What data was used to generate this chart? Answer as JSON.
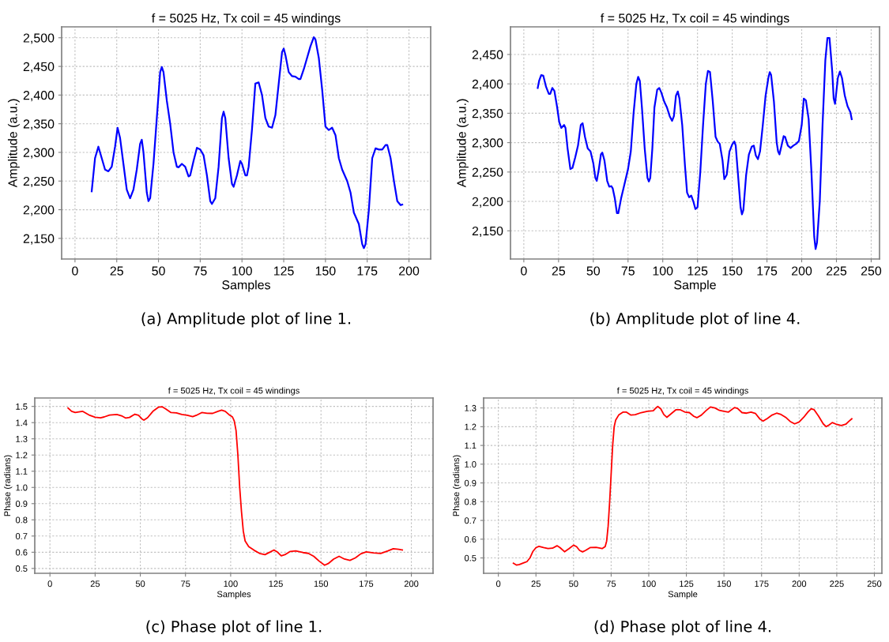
{
  "chart_data": [
    {
      "type": "line",
      "title": "f = 5025 Hz, Tx coil = 45 windings",
      "xlabel": "Samples",
      "ylabel": "Amplitude (a.u.)",
      "annotations": [
        "(a) Amplitude plot of line 1."
      ],
      "grid": true,
      "legend": false,
      "marker": "none",
      "line_style": "solid",
      "xlim": [
        -8,
        213
      ],
      "ylim": [
        2114,
        2519
      ],
      "xticks": [
        0,
        25,
        50,
        75,
        100,
        125,
        150,
        175,
        200
      ],
      "yticks": [
        {
          "value": 2150,
          "label": "2,150"
        },
        {
          "value": 2200,
          "label": "2,200"
        },
        {
          "value": 2250,
          "label": "2,250"
        },
        {
          "value": 2300,
          "label": "2,300"
        },
        {
          "value": 2350,
          "label": "2,350"
        },
        {
          "value": 2400,
          "label": "2,400"
        },
        {
          "value": 2450,
          "label": "2,450"
        },
        {
          "value": 2500,
          "label": "2,500"
        }
      ],
      "series": [
        {
          "color": "#0000ff",
          "x": [
            10,
            12,
            14,
            16,
            18,
            20,
            22,
            24,
            25.5,
            27,
            29,
            31,
            33,
            35,
            37,
            39,
            40,
            41,
            43,
            44,
            45,
            47,
            49,
            51,
            52,
            53,
            55,
            57,
            59,
            61,
            62,
            64,
            66,
            68,
            69,
            71,
            73,
            75,
            77,
            79,
            81,
            82,
            84,
            86,
            88,
            89,
            90,
            92,
            94,
            95,
            97,
            99,
            100,
            102,
            103,
            104,
            106,
            108,
            110,
            112,
            114,
            116,
            118,
            120,
            122,
            124,
            125,
            126,
            128,
            130,
            132,
            134,
            135,
            137,
            139,
            141,
            143,
            144,
            146,
            148,
            150,
            152,
            154,
            156,
            158,
            160,
            163,
            165,
            167,
            170,
            172,
            173,
            174,
            176,
            178,
            180,
            182,
            184,
            186,
            187,
            189,
            191,
            193,
            195,
            196
          ],
          "values": [
            2232,
            2290,
            2310,
            2290,
            2270,
            2267,
            2275,
            2310,
            2343,
            2325,
            2280,
            2235,
            2220,
            2235,
            2270,
            2315,
            2322,
            2300,
            2230,
            2215,
            2220,
            2280,
            2360,
            2440,
            2449,
            2440,
            2390,
            2350,
            2300,
            2275,
            2274,
            2280,
            2275,
            2258,
            2260,
            2285,
            2308,
            2305,
            2295,
            2260,
            2215,
            2210,
            2220,
            2275,
            2360,
            2371,
            2360,
            2290,
            2245,
            2240,
            2260,
            2285,
            2280,
            2260,
            2260,
            2275,
            2340,
            2420,
            2422,
            2400,
            2360,
            2345,
            2343,
            2365,
            2420,
            2475,
            2481,
            2470,
            2440,
            2433,
            2432,
            2428,
            2428,
            2445,
            2465,
            2485,
            2501,
            2497,
            2465,
            2410,
            2345,
            2339,
            2343,
            2330,
            2290,
            2270,
            2250,
            2230,
            2195,
            2175,
            2140,
            2133,
            2140,
            2200,
            2290,
            2307,
            2305,
            2305,
            2313,
            2313,
            2290,
            2250,
            2215,
            2208,
            2209
          ]
        }
      ]
    },
    {
      "type": "line",
      "title": "f = 5025 Hz, Tx coil = 45 windings",
      "xlabel": "Sample",
      "ylabel": "Amplitude (a.u.)",
      "annotations": [
        "(b) Amplitude plot of line 4."
      ],
      "grid": true,
      "legend": false,
      "marker": "none",
      "line_style": "solid",
      "xlim": [
        -9.6,
        256
      ],
      "ylim": [
        2102,
        2497
      ],
      "xticks": [
        0,
        25,
        50,
        75,
        100,
        125,
        150,
        175,
        200,
        225,
        250
      ],
      "yticks": [
        {
          "value": 2150,
          "label": "2,150"
        },
        {
          "value": 2200,
          "label": "2,200"
        },
        {
          "value": 2250,
          "label": "2,250"
        },
        {
          "value": 2300,
          "label": "2,300"
        },
        {
          "value": 2350,
          "label": "2,350"
        },
        {
          "value": 2400,
          "label": "2,400"
        },
        {
          "value": 2450,
          "label": "2,450"
        }
      ],
      "series": [
        {
          "color": "#0000ff",
          "x": [
            10,
            11,
            12.5,
            14,
            16,
            18,
            19,
            20.5,
            22,
            24,
            25.5,
            27,
            29,
            30,
            31.5,
            33.5,
            35,
            37,
            39,
            41,
            42.3,
            44,
            46,
            48,
            50,
            51.5,
            52.5,
            54,
            55.5,
            56.5,
            58,
            60,
            61.5,
            63,
            64,
            65.5,
            67,
            68,
            70,
            72,
            75,
            77,
            79,
            81,
            82.3,
            83.5,
            85,
            87,
            89,
            90,
            91,
            92.5,
            94,
            96,
            97.5,
            99,
            101,
            103,
            105,
            106.7,
            108,
            109.5,
            110.8,
            112,
            114,
            116,
            117.5,
            119,
            120.5,
            122,
            123.5,
            125,
            127,
            129,
            131,
            132.5,
            134,
            136,
            138,
            139.5,
            141,
            143,
            144.3,
            146,
            148,
            150,
            151.5,
            152.5,
            154,
            156,
            157,
            158,
            160,
            162,
            164,
            165.5,
            167,
            168.5,
            170,
            172,
            174,
            176,
            177,
            178,
            180,
            182,
            183,
            184,
            185,
            187,
            188,
            190,
            192,
            194,
            196,
            198,
            200,
            201.5,
            203,
            205,
            207,
            209,
            210,
            211,
            213,
            215,
            217,
            218.5,
            220,
            222,
            223,
            224,
            226,
            227.5,
            229,
            231,
            233,
            235,
            236
          ],
          "values": [
            2393,
            2405,
            2415,
            2414,
            2395,
            2383,
            2383,
            2393,
            2388,
            2360,
            2335,
            2325,
            2330,
            2325,
            2290,
            2255,
            2257,
            2275,
            2295,
            2330,
            2333,
            2310,
            2290,
            2285,
            2265,
            2240,
            2235,
            2255,
            2280,
            2283,
            2270,
            2235,
            2225,
            2226,
            2222,
            2205,
            2180,
            2180,
            2205,
            2225,
            2255,
            2285,
            2350,
            2400,
            2412,
            2405,
            2360,
            2290,
            2240,
            2234,
            2240,
            2290,
            2360,
            2390,
            2393,
            2385,
            2370,
            2360,
            2345,
            2337,
            2345,
            2380,
            2387,
            2375,
            2330,
            2260,
            2215,
            2207,
            2210,
            2200,
            2187,
            2190,
            2250,
            2330,
            2400,
            2422,
            2420,
            2370,
            2310,
            2302,
            2298,
            2270,
            2238,
            2245,
            2285,
            2297,
            2302,
            2295,
            2250,
            2190,
            2178,
            2185,
            2245,
            2280,
            2293,
            2295,
            2278,
            2272,
            2285,
            2330,
            2380,
            2410,
            2420,
            2415,
            2370,
            2300,
            2285,
            2280,
            2290,
            2311,
            2310,
            2295,
            2291,
            2295,
            2298,
            2303,
            2330,
            2375,
            2372,
            2340,
            2250,
            2140,
            2119,
            2130,
            2200,
            2330,
            2440,
            2478,
            2478,
            2420,
            2375,
            2366,
            2410,
            2421,
            2410,
            2380,
            2362,
            2352,
            2340
          ]
        }
      ]
    },
    {
      "type": "line",
      "title": "f = 5025 Hz, Tx coil = 45 windings",
      "xlabel": "Samples",
      "ylabel": "Phase (radians)",
      "annotations": [
        "(c) Phase plot of line 1."
      ],
      "grid": true,
      "legend": false,
      "marker": "none",
      "line_style": "solid",
      "xlim": [
        -8.4,
        212
      ],
      "ylim": [
        0.47,
        1.552
      ],
      "xticks": [
        0,
        25,
        50,
        75,
        100,
        125,
        150,
        175,
        200
      ],
      "yticks": [
        {
          "value": 0.5,
          "label": "0.5"
        },
        {
          "value": 0.6,
          "label": "0.6"
        },
        {
          "value": 0.7,
          "label": "0.7"
        },
        {
          "value": 0.8,
          "label": "0.8"
        },
        {
          "value": 0.9,
          "label": "0.9"
        },
        {
          "value": 1.0,
          "label": "1.0"
        },
        {
          "value": 1.1,
          "label": "1.1"
        },
        {
          "value": 1.2,
          "label": "1.2"
        },
        {
          "value": 1.3,
          "label": "1.3"
        },
        {
          "value": 1.4,
          "label": "1.4"
        },
        {
          "value": 1.5,
          "label": "1.5"
        }
      ],
      "series": [
        {
          "color": "#ff0000",
          "x": [
            10,
            12,
            14,
            18,
            22,
            25,
            28,
            30,
            33,
            37,
            40,
            42,
            44,
            47,
            49,
            51,
            52,
            54,
            57,
            60,
            62,
            64,
            67,
            70,
            73,
            76,
            79,
            81,
            84,
            87,
            90,
            93,
            95,
            97,
            99,
            101,
            102,
            103,
            104,
            105,
            106,
            107,
            108,
            110,
            113,
            116,
            119,
            122,
            124,
            126,
            128,
            130,
            133,
            136,
            140,
            143,
            146,
            149,
            152,
            154,
            157,
            160,
            163,
            166,
            169,
            172,
            175,
            179,
            183,
            187,
            190,
            193,
            195
          ],
          "values": [
            1.49,
            1.47,
            1.462,
            1.47,
            1.445,
            1.433,
            1.43,
            1.435,
            1.447,
            1.45,
            1.44,
            1.428,
            1.432,
            1.452,
            1.445,
            1.422,
            1.415,
            1.43,
            1.47,
            1.495,
            1.498,
            1.485,
            1.462,
            1.46,
            1.45,
            1.445,
            1.437,
            1.445,
            1.462,
            1.458,
            1.457,
            1.47,
            1.477,
            1.47,
            1.45,
            1.435,
            1.41,
            1.35,
            1.2,
            1.0,
            0.85,
            0.73,
            0.67,
            0.635,
            0.612,
            0.593,
            0.585,
            0.602,
            0.614,
            0.6,
            0.578,
            0.585,
            0.605,
            0.608,
            0.598,
            0.593,
            0.575,
            0.545,
            0.52,
            0.53,
            0.558,
            0.575,
            0.558,
            0.55,
            0.565,
            0.59,
            0.602,
            0.596,
            0.592,
            0.608,
            0.622,
            0.618,
            0.614
          ]
        }
      ]
    },
    {
      "type": "line",
      "title": "f = 5025 Hz, Tx coil = 45 windings",
      "xlabel": "Sample",
      "ylabel": "Phase (radians)",
      "annotations": [
        "(d) Phase plot of line 4."
      ],
      "grid": true,
      "legend": false,
      "marker": "none",
      "line_style": "solid",
      "xlim": [
        -9.8,
        255
      ],
      "ylim": [
        0.418,
        1.353
      ],
      "xticks": [
        0,
        25,
        50,
        75,
        100,
        125,
        150,
        175,
        200,
        225,
        250
      ],
      "yticks": [
        {
          "value": 0.5,
          "label": "0.5"
        },
        {
          "value": 0.6,
          "label": "0.6"
        },
        {
          "value": 0.7,
          "label": "0.7"
        },
        {
          "value": 0.8,
          "label": "0.8"
        },
        {
          "value": 0.9,
          "label": "0.9"
        },
        {
          "value": 1.0,
          "label": "1.0"
        },
        {
          "value": 1.1,
          "label": "1.1"
        },
        {
          "value": 1.2,
          "label": "1.2"
        },
        {
          "value": 1.3,
          "label": "1.3"
        }
      ],
      "series": [
        {
          "color": "#ff0000",
          "x": [
            10,
            12,
            14,
            17,
            19,
            21,
            23,
            25,
            27,
            30,
            33,
            36,
            39,
            41,
            44,
            47,
            50,
            52,
            54,
            56,
            58,
            61,
            65,
            69,
            71,
            72,
            73,
            74,
            75,
            76,
            77,
            78,
            80,
            83,
            85,
            88,
            91,
            95,
            99,
            103,
            105,
            106,
            108,
            110,
            112,
            115,
            118,
            121,
            124,
            127,
            130,
            132,
            135,
            138,
            141,
            144,
            147,
            150,
            153,
            157,
            159,
            162,
            165,
            168,
            171,
            174,
            176,
            179,
            182,
            185,
            188,
            191,
            194,
            197,
            200,
            203,
            206,
            208,
            210,
            213,
            216,
            218,
            220,
            222,
            225,
            228,
            231,
            233,
            235
          ],
          "values": [
            0.472,
            0.462,
            0.465,
            0.474,
            0.48,
            0.5,
            0.535,
            0.555,
            0.562,
            0.555,
            0.55,
            0.552,
            0.565,
            0.555,
            0.533,
            0.55,
            0.568,
            0.56,
            0.54,
            0.532,
            0.54,
            0.555,
            0.556,
            0.55,
            0.56,
            0.59,
            0.67,
            0.8,
            0.95,
            1.1,
            1.2,
            1.235,
            1.262,
            1.278,
            1.278,
            1.262,
            1.264,
            1.275,
            1.282,
            1.285,
            1.302,
            1.308,
            1.295,
            1.265,
            1.25,
            1.27,
            1.29,
            1.29,
            1.278,
            1.275,
            1.255,
            1.248,
            1.262,
            1.285,
            1.305,
            1.3,
            1.287,
            1.282,
            1.278,
            1.302,
            1.298,
            1.275,
            1.272,
            1.278,
            1.27,
            1.24,
            1.23,
            1.245,
            1.262,
            1.272,
            1.265,
            1.25,
            1.228,
            1.215,
            1.225,
            1.25,
            1.28,
            1.296,
            1.29,
            1.255,
            1.215,
            1.2,
            1.21,
            1.222,
            1.212,
            1.206,
            1.213,
            1.228,
            1.242
          ]
        }
      ]
    }
  ]
}
